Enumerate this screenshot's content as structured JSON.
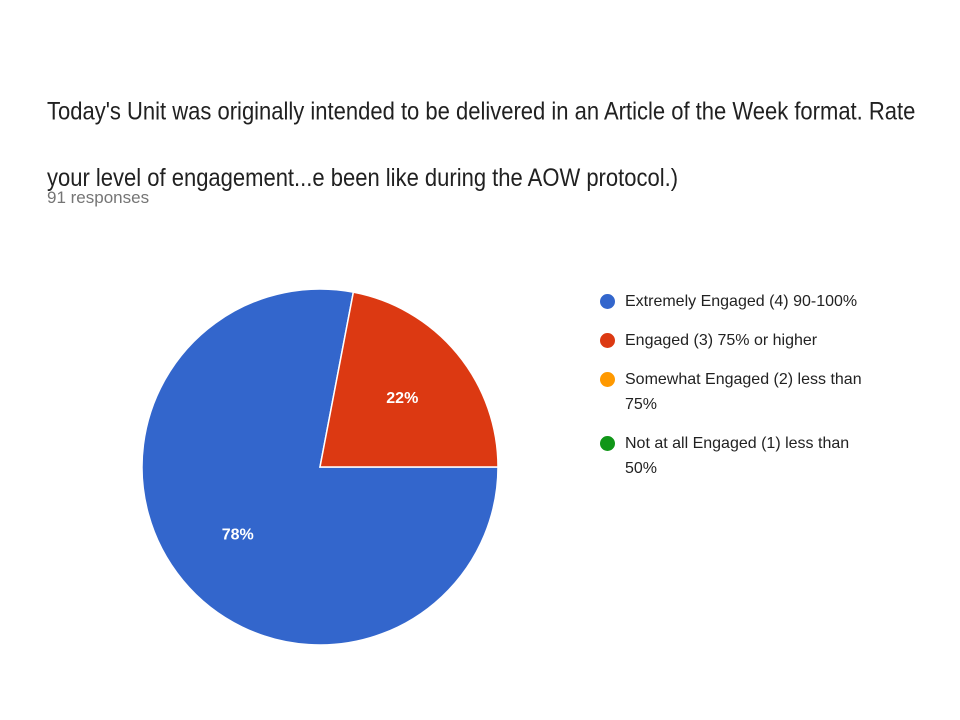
{
  "chart_data": {
    "type": "pie",
    "title": "Today's Unit was originally intended to be delivered in an Article of the Week format.  Rate your level of engagement...e been like during the AOW protocol.)",
    "subtitle": "91 responses",
    "categories": [
      "Extremely Engaged (4) 90-100%",
      "Engaged (3) 75% or higher",
      "Somewhat Engaged (2) less than 75%",
      "Not at all Engaged (1) less than 50%"
    ],
    "values": [
      78,
      22,
      0,
      0
    ],
    "value_labels": [
      "78%",
      "22%",
      null,
      null
    ],
    "colors": [
      "#3366cc",
      "#dc3912",
      "#ff9900",
      "#109618"
    ],
    "legend": "right"
  }
}
